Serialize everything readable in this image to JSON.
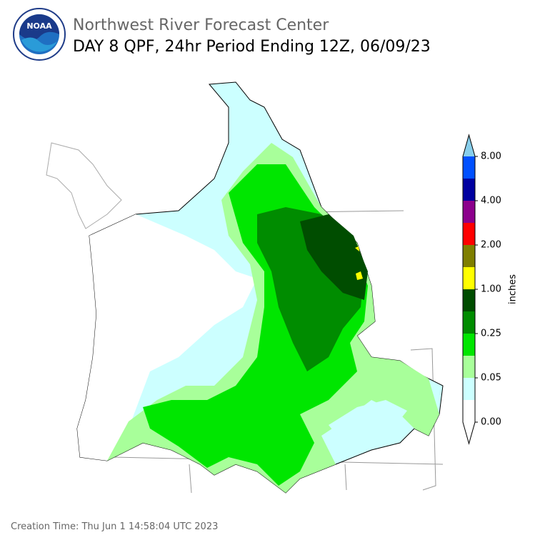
{
  "header": {
    "title": "Northwest River Forecast Center",
    "subtitle": "DAY 8 QPF, 24hr Period Ending 12Z, 06/09/23",
    "logo_text": "NOAA"
  },
  "colorbar": {
    "label": "inches",
    "ticks": [
      "0.00",
      "0.05",
      "0.25",
      "1.00",
      "2.00",
      "4.00",
      "8.00"
    ],
    "colors": [
      "#ffffff",
      "#ccffff",
      "#a8ff9a",
      "#00e600",
      "#008c00",
      "#004d00",
      "#ffff00",
      "#7f7f00",
      "#ff0000",
      "#8c008c",
      "#0000a0",
      "#0050ff"
    ],
    "over_color": "#87ceeb",
    "under_color": "#ffffff"
  },
  "footer": {
    "creation_time": "Creation Time: Thu Jun 1 14:58:04 UTC 2023"
  }
}
